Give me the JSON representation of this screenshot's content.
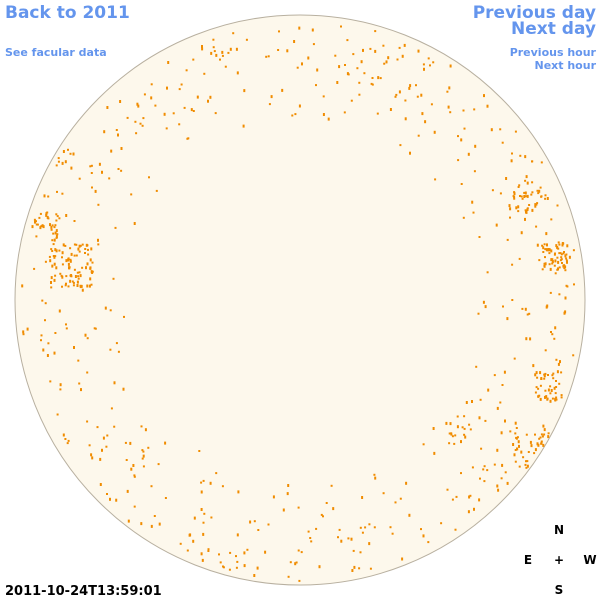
{
  "header": {
    "back": "Back to 2011",
    "facular_link": "See facular data"
  },
  "navigation": {
    "previous_day": "Previous day",
    "next_day": "Next day",
    "previous_hour": "Previous hour",
    "next_hour": "Next hour"
  },
  "timestamp": "2011-10-24T13:59:01",
  "compass": {
    "north": "N",
    "east": "E",
    "center": "+",
    "west": "W",
    "south": "S"
  }
}
